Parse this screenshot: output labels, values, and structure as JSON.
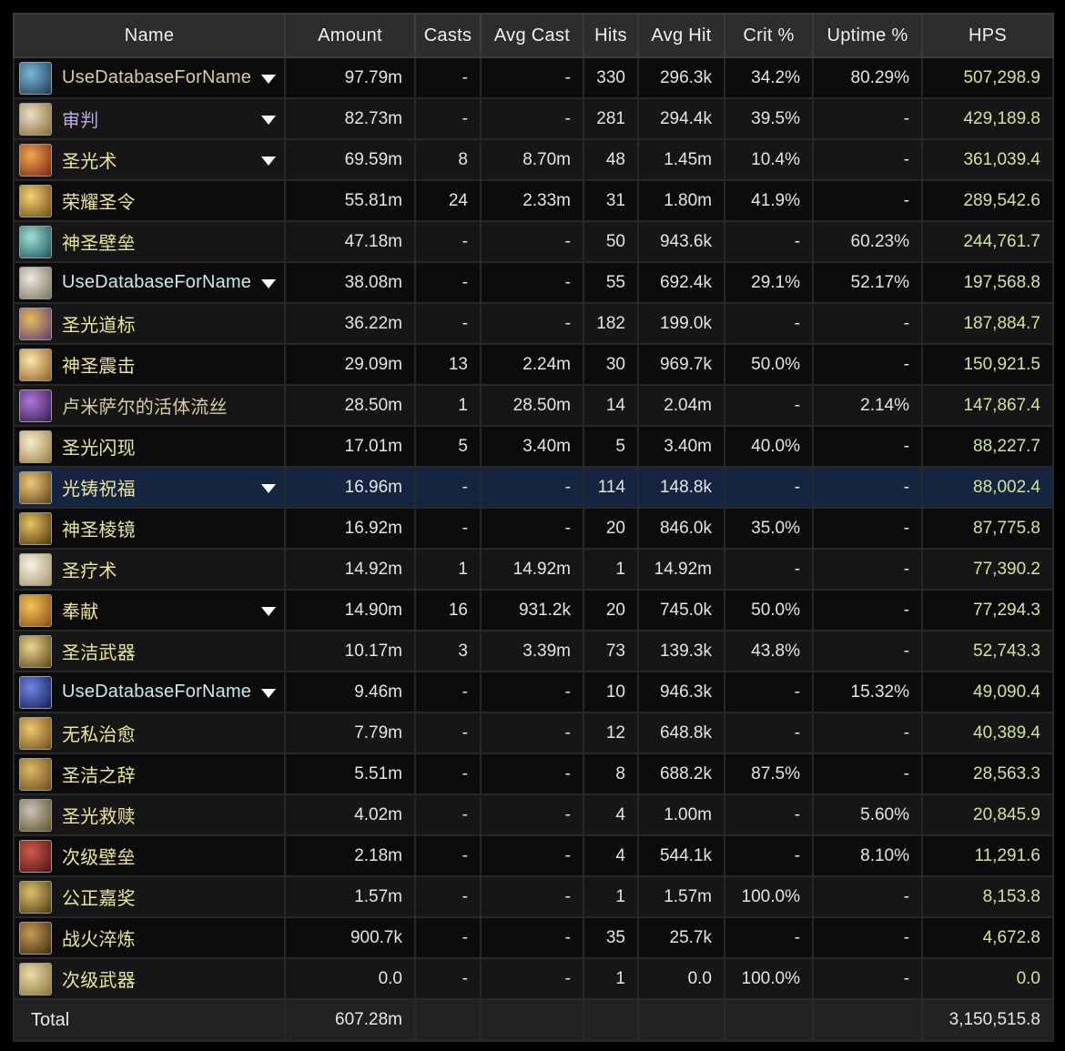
{
  "table_title": "healing-breakdown-table",
  "columns": [
    {
      "key": "name",
      "label": "Name"
    },
    {
      "key": "amount",
      "label": "Amount"
    },
    {
      "key": "casts",
      "label": "Casts"
    },
    {
      "key": "avg_cast",
      "label": "Avg Cast"
    },
    {
      "key": "hits",
      "label": "Hits"
    },
    {
      "key": "avg_hit",
      "label": "Avg Hit"
    },
    {
      "key": "crit",
      "label": "Crit %"
    },
    {
      "key": "uptime",
      "label": "Uptime %"
    },
    {
      "key": "hps",
      "label": "HPS"
    }
  ],
  "colors": {
    "page_bg": "#000000",
    "header_bg": "#2d2d2d",
    "row_dark": "#0b0b0b",
    "row_light": "#161616",
    "row_highlight": "#15253f",
    "total_row_bg": "#212121",
    "hps_green": "#cfe3a0",
    "value_text": "#e4e4e4",
    "name_yellow": "#ebe49e",
    "name_purple": "#bfa9e6",
    "name_tan": "#d8cba4",
    "name_cyan": "#cbe7f1"
  },
  "rows": [
    {
      "name": "UseDatabaseForName",
      "name_color": "#d8cba4",
      "caret": true,
      "shade": "dark",
      "icon_gradient": [
        "#7ab6d8",
        "#1d3a52"
      ],
      "amount": "97.79m",
      "casts": "-",
      "avg_cast": "-",
      "hits": "330",
      "avg_hit": "296.3k",
      "crit": "34.2%",
      "uptime": "80.29%",
      "hps": "507,298.9"
    },
    {
      "name": "审判",
      "name_color": "#bfa9e6",
      "caret": true,
      "shade": "light",
      "icon_gradient": [
        "#e8dfc8",
        "#8a6a34"
      ],
      "amount": "82.73m",
      "casts": "-",
      "avg_cast": "-",
      "hits": "281",
      "avg_hit": "294.4k",
      "crit": "39.5%",
      "uptime": "-",
      "hps": "429,189.8"
    },
    {
      "name": "圣光术",
      "name_color": "#ebe49e",
      "caret": true,
      "shade": "light",
      "icon_gradient": [
        "#f0a84e",
        "#7c2210"
      ],
      "amount": "69.59m",
      "casts": "8",
      "avg_cast": "8.70m",
      "hits": "48",
      "avg_hit": "1.45m",
      "crit": "10.4%",
      "uptime": "-",
      "hps": "361,039.4"
    },
    {
      "name": "荣耀圣令",
      "name_color": "#ebe49e",
      "caret": false,
      "shade": "dark",
      "icon_gradient": [
        "#f4d372",
        "#6e4a14"
      ],
      "amount": "55.81m",
      "casts": "24",
      "avg_cast": "2.33m",
      "hits": "31",
      "avg_hit": "1.80m",
      "crit": "41.9%",
      "uptime": "-",
      "hps": "289,542.6"
    },
    {
      "name": "神圣壁垒",
      "name_color": "#ebe49e",
      "caret": false,
      "shade": "light",
      "icon_gradient": [
        "#9fe0d8",
        "#1d4f55"
      ],
      "amount": "47.18m",
      "casts": "-",
      "avg_cast": "-",
      "hits": "50",
      "avg_hit": "943.6k",
      "crit": "-",
      "uptime": "60.23%",
      "hps": "244,761.7"
    },
    {
      "name": "UseDatabaseForName",
      "name_color": "#cbe7f1",
      "caret": true,
      "shade": "dark",
      "icon_gradient": [
        "#efe9dc",
        "#7a7260"
      ],
      "amount": "38.08m",
      "casts": "-",
      "avg_cast": "-",
      "hits": "55",
      "avg_hit": "692.4k",
      "crit": "29.1%",
      "uptime": "52.17%",
      "hps": "197,568.8"
    },
    {
      "name": "圣光道标",
      "name_color": "#ebe49e",
      "caret": false,
      "shade": "light",
      "icon_gradient": [
        "#e8bc5c",
        "#5c3a72"
      ],
      "amount": "36.22m",
      "casts": "-",
      "avg_cast": "-",
      "hits": "182",
      "avg_hit": "199.0k",
      "crit": "-",
      "uptime": "-",
      "hps": "187,884.7"
    },
    {
      "name": "神圣震击",
      "name_color": "#ebe49e",
      "caret": false,
      "shade": "dark",
      "icon_gradient": [
        "#fbe7ae",
        "#935c1c"
      ],
      "amount": "29.09m",
      "casts": "13",
      "avg_cast": "2.24m",
      "hits": "30",
      "avg_hit": "969.7k",
      "crit": "50.0%",
      "uptime": "-",
      "hps": "150,921.5"
    },
    {
      "name": "卢米萨尔的活体流丝",
      "name_color": "#d8cba4",
      "caret": false,
      "shade": "light",
      "icon_gradient": [
        "#b077d8",
        "#32194e"
      ],
      "amount": "28.50m",
      "casts": "1",
      "avg_cast": "28.50m",
      "hits": "14",
      "avg_hit": "2.04m",
      "crit": "-",
      "uptime": "2.14%",
      "hps": "147,867.4"
    },
    {
      "name": "圣光闪现",
      "name_color": "#ebe49e",
      "caret": false,
      "shade": "dark",
      "icon_gradient": [
        "#f7efd2",
        "#9a7c3c"
      ],
      "amount": "17.01m",
      "casts": "5",
      "avg_cast": "3.40m",
      "hits": "5",
      "avg_hit": "3.40m",
      "crit": "40.0%",
      "uptime": "-",
      "hps": "88,227.7"
    },
    {
      "name": "光铸祝福",
      "name_color": "#ebe49e",
      "caret": true,
      "shade": "highlight",
      "icon_gradient": [
        "#eccb79",
        "#5e3f16"
      ],
      "amount": "16.96m",
      "casts": "-",
      "avg_cast": "-",
      "hits": "114",
      "avg_hit": "148.8k",
      "crit": "-",
      "uptime": "-",
      "hps": "88,002.4"
    },
    {
      "name": "神圣棱镜",
      "name_color": "#ebe49e",
      "caret": false,
      "shade": "dark",
      "icon_gradient": [
        "#e9c35e",
        "#4c330e"
      ],
      "amount": "16.92m",
      "casts": "-",
      "avg_cast": "-",
      "hits": "20",
      "avg_hit": "846.0k",
      "crit": "35.0%",
      "uptime": "-",
      "hps": "87,775.8"
    },
    {
      "name": "圣疗术",
      "name_color": "#ebe49e",
      "caret": false,
      "shade": "light",
      "icon_gradient": [
        "#f8f3e4",
        "#a89468"
      ],
      "amount": "14.92m",
      "casts": "1",
      "avg_cast": "14.92m",
      "hits": "1",
      "avg_hit": "14.92m",
      "crit": "-",
      "uptime": "-",
      "hps": "77,390.2"
    },
    {
      "name": "奉献",
      "name_color": "#ebe49e",
      "caret": true,
      "shade": "dark",
      "icon_gradient": [
        "#f2c654",
        "#8a4a12"
      ],
      "amount": "14.90m",
      "casts": "16",
      "avg_cast": "931.2k",
      "hits": "20",
      "avg_hit": "745.0k",
      "crit": "50.0%",
      "uptime": "-",
      "hps": "77,294.3"
    },
    {
      "name": "圣洁武器",
      "name_color": "#ebe49e",
      "caret": false,
      "shade": "light",
      "icon_gradient": [
        "#ecd694",
        "#5a4312"
      ],
      "amount": "10.17m",
      "casts": "3",
      "avg_cast": "3.39m",
      "hits": "73",
      "avg_hit": "139.3k",
      "crit": "43.8%",
      "uptime": "-",
      "hps": "52,743.3"
    },
    {
      "name": "UseDatabaseForName",
      "name_color": "#cbe7f1",
      "caret": true,
      "shade": "dark",
      "icon_gradient": [
        "#6f86e8",
        "#141c4e"
      ],
      "amount": "9.46m",
      "casts": "-",
      "avg_cast": "-",
      "hits": "10",
      "avg_hit": "946.3k",
      "crit": "-",
      "uptime": "15.32%",
      "hps": "49,090.4"
    },
    {
      "name": "无私治愈",
      "name_color": "#ebe49e",
      "caret": false,
      "shade": "light",
      "icon_gradient": [
        "#eec86e",
        "#6e4d1a"
      ],
      "amount": "7.79m",
      "casts": "-",
      "avg_cast": "-",
      "hits": "12",
      "avg_hit": "648.8k",
      "crit": "-",
      "uptime": "-",
      "hps": "40,389.4"
    },
    {
      "name": "圣洁之辞",
      "name_color": "#ebe49e",
      "caret": false,
      "shade": "dark",
      "icon_gradient": [
        "#dcb964",
        "#6a4a1a"
      ],
      "amount": "5.51m",
      "casts": "-",
      "avg_cast": "-",
      "hits": "8",
      "avg_hit": "688.2k",
      "crit": "87.5%",
      "uptime": "-",
      "hps": "28,563.3"
    },
    {
      "name": "圣光救赎",
      "name_color": "#ebe49e",
      "caret": false,
      "shade": "light",
      "icon_gradient": [
        "#c9c4bb",
        "#5f5124"
      ],
      "amount": "4.02m",
      "casts": "-",
      "avg_cast": "-",
      "hits": "4",
      "avg_hit": "1.00m",
      "crit": "-",
      "uptime": "5.60%",
      "hps": "20,845.9"
    },
    {
      "name": "次级壁垒",
      "name_color": "#ebe49e",
      "caret": false,
      "shade": "dark",
      "icon_gradient": [
        "#cf5a4a",
        "#4e1212"
      ],
      "amount": "2.18m",
      "casts": "-",
      "avg_cast": "-",
      "hits": "4",
      "avg_hit": "544.1k",
      "crit": "-",
      "uptime": "8.10%",
      "hps": "11,291.6"
    },
    {
      "name": "公正嘉奖",
      "name_color": "#ebe49e",
      "caret": false,
      "shade": "light",
      "icon_gradient": [
        "#dfc06a",
        "#4a3a14"
      ],
      "amount": "1.57m",
      "casts": "-",
      "avg_cast": "-",
      "hits": "1",
      "avg_hit": "1.57m",
      "crit": "100.0%",
      "uptime": "-",
      "hps": "8,153.8"
    },
    {
      "name": "战火淬炼",
      "name_color": "#ebe49e",
      "caret": false,
      "shade": "dark",
      "icon_gradient": [
        "#c89a52",
        "#3e2a10"
      ],
      "amount": "900.7k",
      "casts": "-",
      "avg_cast": "-",
      "hits": "35",
      "avg_hit": "25.7k",
      "crit": "-",
      "uptime": "-",
      "hps": "4,672.8"
    },
    {
      "name": "次级武器",
      "name_color": "#ebe49e",
      "caret": false,
      "shade": "light",
      "icon_gradient": [
        "#ecdcae",
        "#8a7434"
      ],
      "amount": "0.0",
      "casts": "-",
      "avg_cast": "-",
      "hits": "1",
      "avg_hit": "0.0",
      "crit": "100.0%",
      "uptime": "-",
      "hps": "0.0"
    }
  ],
  "total_row": {
    "label": "Total",
    "amount": "607.28m",
    "casts": "",
    "avg_cast": "",
    "hits": "",
    "avg_hit": "",
    "crit": "",
    "uptime": "",
    "hps": "3,150,515.8"
  }
}
